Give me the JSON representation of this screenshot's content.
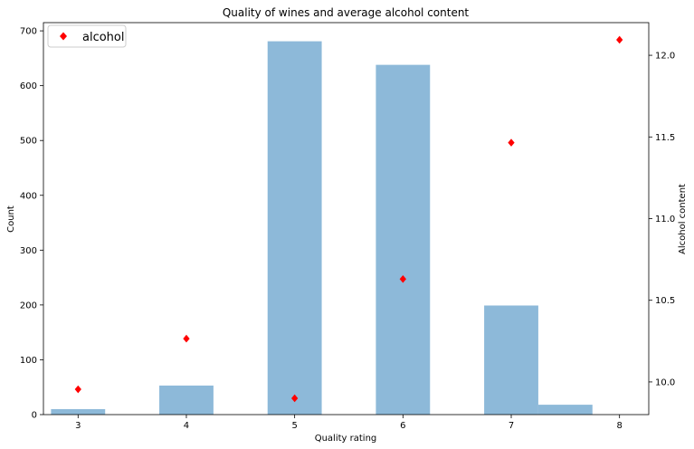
{
  "chart_data": {
    "type": "bar",
    "title": "Quality of wines and average alcohol content",
    "xlabel": "Quality rating",
    "ylabel_left": "Count",
    "ylabel_right": "Alcohol content",
    "x_ticks": [
      3,
      4,
      5,
      6,
      7,
      8
    ],
    "xlim": [
      2.68,
      8.27
    ],
    "ylim_left": [
      0,
      715
    ],
    "ylim_right": [
      9.8,
      12.2
    ],
    "left_ticks": [
      0,
      100,
      200,
      300,
      400,
      500,
      600,
      700
    ],
    "right_ticks": [
      10.0,
      10.5,
      11.0,
      11.5,
      12.0
    ],
    "right_tick_labels": [
      "10.0",
      "10.5",
      "11.0",
      "11.5",
      "12.0"
    ],
    "bars": {
      "color": "#8db9d9",
      "width": 0.5,
      "items": [
        {
          "x_start": 2.75,
          "count": 10
        },
        {
          "x_start": 3.75,
          "count": 53
        },
        {
          "x_start": 4.75,
          "count": 681
        },
        {
          "x_start": 5.75,
          "count": 638
        },
        {
          "x_start": 6.75,
          "count": 199
        },
        {
          "x_start": 7.25,
          "count": 18
        }
      ]
    },
    "scatter": {
      "name": "alcohol",
      "color": "#ff0000",
      "marker": "diamond",
      "points": [
        {
          "x": 3,
          "y": 9.955
        },
        {
          "x": 4,
          "y": 10.265
        },
        {
          "x": 5,
          "y": 9.9
        },
        {
          "x": 6,
          "y": 10.63
        },
        {
          "x": 7,
          "y": 11.465
        },
        {
          "x": 8,
          "y": 12.095
        }
      ]
    },
    "legend": {
      "position": "top-left",
      "entries": [
        "alcohol"
      ]
    },
    "grid": false
  }
}
